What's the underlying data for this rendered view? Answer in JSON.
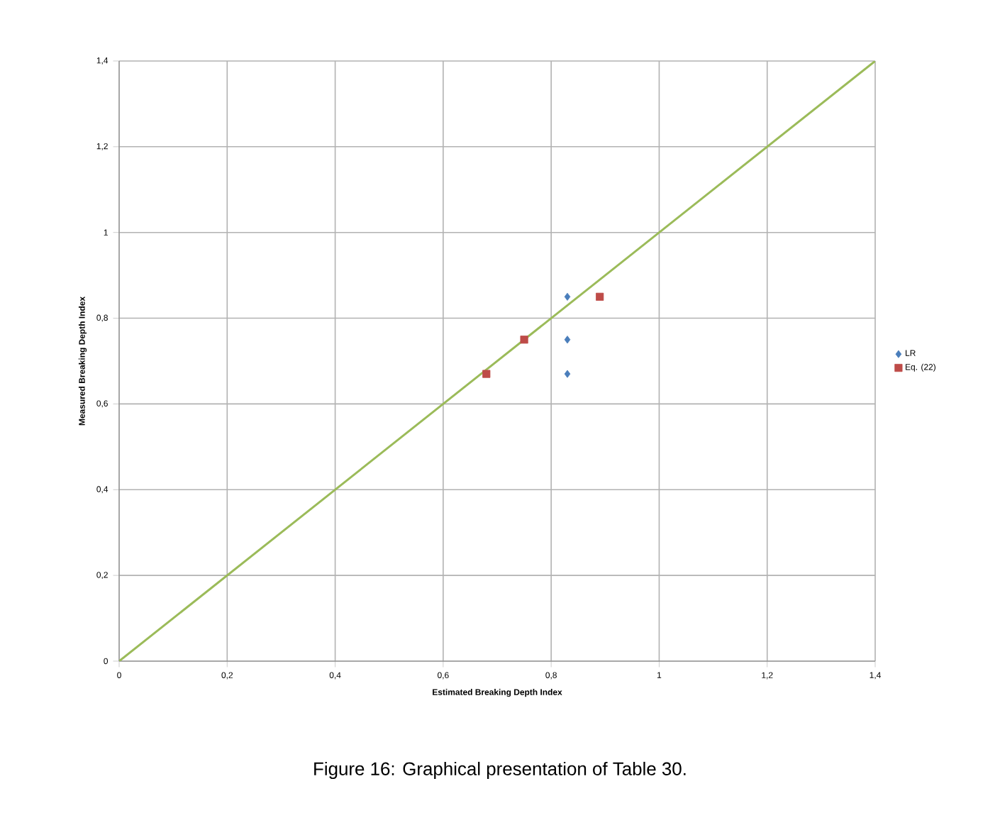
{
  "chart_data": {
    "type": "scatter",
    "xlabel": "Estimated Breaking Depth Index",
    "ylabel": "Measured Breaking Depth Index",
    "xlim": [
      0,
      1.4
    ],
    "ylim": [
      0,
      1.4
    ],
    "xticks": [
      0,
      {
        "value": 0.2,
        "label": "0,2"
      },
      {
        "value": 0.4,
        "label": "0,4"
      },
      {
        "value": 0.6,
        "label": "0,6"
      },
      {
        "value": 0.8,
        "label": "0,8"
      },
      1,
      {
        "value": 1.2,
        "label": "1,2"
      },
      {
        "value": 1.4,
        "label": "1,4"
      }
    ],
    "yticks": [
      0,
      {
        "value": 0.2,
        "label": "0,2"
      },
      {
        "value": 0.4,
        "label": "0,4"
      },
      {
        "value": 0.6,
        "label": "0,6"
      },
      {
        "value": 0.8,
        "label": "0,8"
      },
      1,
      {
        "value": 1.2,
        "label": "1,2"
      },
      {
        "value": 1.4,
        "label": "1,4"
      }
    ],
    "grid": true,
    "legend": "right",
    "series": [
      {
        "name": "LR",
        "color": "#4a7ebb",
        "marker": "diamond",
        "x": [
          0.83,
          0.83,
          0.83
        ],
        "values": [
          0.85,
          0.75,
          0.67
        ]
      },
      {
        "name": "Eq. (22)",
        "color": "#be4b48",
        "marker": "square",
        "x": [
          0.89,
          0.75,
          0.68
        ],
        "values": [
          0.85,
          0.75,
          0.67
        ]
      },
      {
        "type": "line",
        "color": "#9bbb59",
        "marker": "none",
        "x": [
          0,
          1.4
        ],
        "values": [
          0,
          1.4
        ]
      }
    ],
    "annotations": [
      "Figure 16: Graphical presentation of Table 30."
    ]
  }
}
